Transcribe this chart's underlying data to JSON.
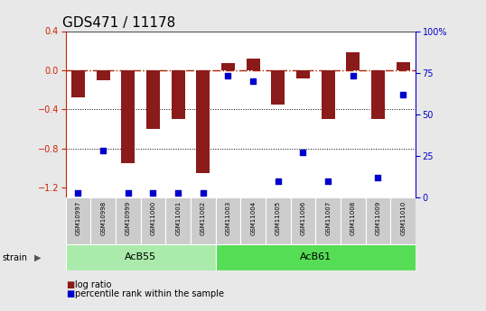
{
  "title": "GDS471 / 11178",
  "samples": [
    "GSM10997",
    "GSM10998",
    "GSM10999",
    "GSM11000",
    "GSM11001",
    "GSM11002",
    "GSM11003",
    "GSM11004",
    "GSM11005",
    "GSM11006",
    "GSM11007",
    "GSM11008",
    "GSM11009",
    "GSM11010"
  ],
  "log_ratio": [
    -0.28,
    -0.1,
    -0.95,
    -0.6,
    -0.5,
    -1.05,
    0.07,
    0.12,
    -0.35,
    -0.08,
    -0.5,
    0.18,
    -0.5,
    0.08
  ],
  "percentile_rank": [
    3,
    28,
    3,
    3,
    3,
    3,
    73,
    70,
    10,
    27,
    10,
    73,
    12,
    62
  ],
  "groups": [
    {
      "label": "AcB55",
      "start": 0,
      "end": 6,
      "color": "#AAEAAA"
    },
    {
      "label": "AcB61",
      "start": 6,
      "end": 14,
      "color": "#55DD55"
    }
  ],
  "ylim_left": [
    -1.3,
    0.4
  ],
  "ylim_right": [
    0,
    100
  ],
  "bar_color": "#8B1A1A",
  "dot_color": "#0000CC",
  "hline_color": "#AA2200",
  "dotted_line_color": "#000000",
  "axis_color_left": "#CC2200",
  "axis_color_right": "#0000CC",
  "bg_color": "#FFFFFF",
  "fig_bg_color": "#E8E8E8",
  "title_fontsize": 11,
  "tick_fontsize": 7,
  "bar_width": 0.55
}
